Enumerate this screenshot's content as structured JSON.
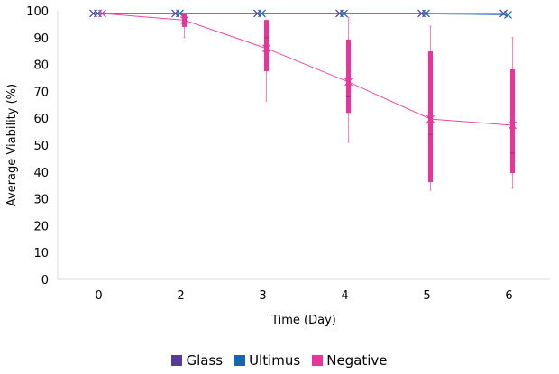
{
  "chart_data": {
    "type": "box",
    "title": "",
    "xlabel": "Time (Day)",
    "ylabel": "Average Viability (%)",
    "ylim": [
      0,
      100
    ],
    "yticks": [
      0,
      10,
      20,
      30,
      40,
      50,
      60,
      70,
      80,
      90,
      100
    ],
    "categories": [
      "0",
      "2",
      "3",
      "4",
      "5",
      "6"
    ],
    "grid": false,
    "legend_position": "bottom",
    "series": [
      {
        "name": "Glass",
        "color": "#553c9a",
        "mean": [
          99,
          99,
          99,
          99,
          99,
          99
        ]
      },
      {
        "name": "Ultimus",
        "color": "#1565b0",
        "mean": [
          99,
          99,
          99,
          99,
          99,
          98.5
        ]
      },
      {
        "name": "Negative",
        "color": "#e8359a",
        "mean": [
          99,
          96.5,
          86,
          73.5,
          59.7,
          57.4
        ],
        "box": [
          null,
          {
            "min": 90,
            "q1": 94,
            "median": 96.5,
            "q3": 99,
            "max": 99
          },
          {
            "min": 66.4,
            "q1": 77.5,
            "median": 90,
            "q3": 96.6,
            "max": 96.6
          },
          {
            "min": 51,
            "q1": 62,
            "median": 68,
            "q3": 89.3,
            "max": 97.6
          },
          {
            "min": 33.2,
            "q1": 36.2,
            "median": 54,
            "q3": 84.9,
            "max": 94.3
          },
          {
            "min": 33.9,
            "q1": 39.6,
            "median": 47,
            "q3": 78.2,
            "max": 90
          }
        ]
      }
    ]
  }
}
